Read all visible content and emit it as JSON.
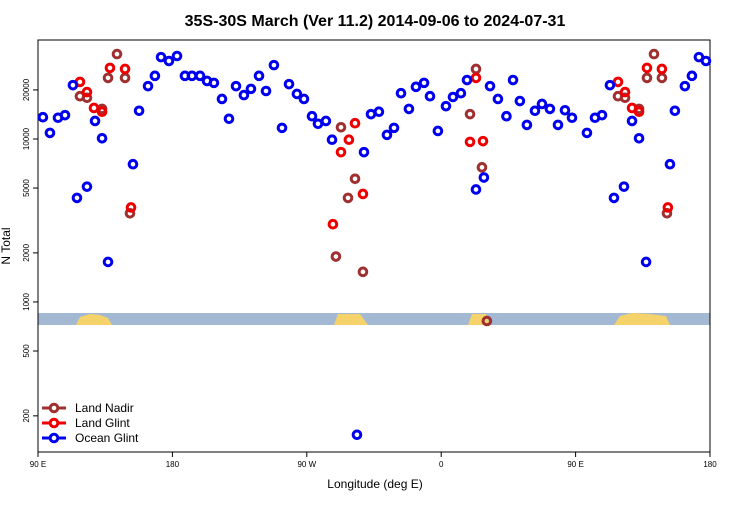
{
  "chart_data": {
    "type": "scatter",
    "title": "35S-30S March (Ver 11.2)   2014-09-06 to 2024-07-31",
    "xlabel": "Longitude (deg E)",
    "ylabel": "N Total",
    "xlim": [
      90,
      540
    ],
    "xticks": [
      {
        "value": 90,
        "label": "90 E"
      },
      {
        "value": 180,
        "label": "180"
      },
      {
        "value": 270,
        "label": "90 W"
      },
      {
        "value": 360,
        "label": "0"
      },
      {
        "value": 450,
        "label": "90 E"
      },
      {
        "value": 540,
        "label": "180"
      }
    ],
    "ylim": [
      120,
      40500
    ],
    "log_y": true,
    "yticks": [
      200,
      500,
      1000,
      2000,
      5000,
      10000,
      20000
    ],
    "legend_position": "lower-left",
    "series": [
      {
        "name": "Land Nadir",
        "color": "#a03030",
        "x": [
          118.1,
          122.8,
          132.9,
          136.9,
          142.9,
          148.3,
          151.6,
          289.5,
          292.9,
          297.6,
          302.3,
          307.6,
          379.3,
          383.3,
          387.3,
          390.6,
          478.4,
          483.1,
          492.5,
          497.8,
          502.5,
          507.8,
          511.2
        ],
        "values": [
          18300,
          17900,
          15300,
          23700,
          33200,
          23700,
          3500,
          1900,
          11800,
          4350,
          5700,
          1530,
          14200,
          26900,
          6700,
          764,
          18300,
          17900,
          15300,
          23700,
          33200,
          23700,
          3500
        ]
      },
      {
        "name": "Land Glint",
        "color": "#ee0000",
        "x": [
          118.1,
          122.8,
          127.5,
          132.9,
          138.2,
          148.3,
          152.3,
          287.5,
          292.9,
          298.2,
          302.3,
          307.6,
          379.3,
          383.3,
          388.0,
          478.4,
          483.1,
          487.8,
          492.5,
          497.8,
          507.8,
          511.8
        ],
        "values": [
          22400,
          19400,
          15500,
          14700,
          27300,
          26900,
          3800,
          3000,
          8300,
          9900,
          12500,
          4600,
          9600,
          23700,
          9700,
          22400,
          19400,
          15500,
          14700,
          27300,
          26900,
          3800
        ]
      },
      {
        "name": "Ocean Glint",
        "color": "#0000ee",
        "x": [
          93.3,
          98.0,
          103.4,
          108.1,
          113.4,
          116.1,
          122.8,
          128.2,
          132.9,
          136.9,
          153.6,
          157.7,
          163.7,
          168.3,
          172.4,
          177.7,
          183.1,
          188.4,
          193.1,
          198.5,
          203.2,
          207.8,
          213.2,
          217.9,
          222.6,
          227.9,
          232.6,
          238.0,
          242.7,
          248.0,
          253.4,
          258.1,
          263.4,
          268.1,
          273.5,
          277.5,
          282.8,
          286.9,
          303.6,
          308.3,
          313.0,
          318.3,
          323.7,
          328.4,
          333.1,
          338.4,
          343.1,
          348.5,
          352.5,
          357.8,
          363.2,
          367.9,
          373.2,
          377.3,
          383.3,
          388.6,
          392.7,
          398.0,
          403.7,
          408.1,
          412.7,
          417.4,
          422.8,
          427.5,
          432.8,
          438.2,
          442.9,
          447.6,
          457.6,
          463.0,
          467.7,
          473.0,
          475.7,
          482.4,
          487.8,
          492.5,
          497.2,
          513.2,
          516.5,
          523.2,
          527.9,
          532.6,
          537.3
        ],
        "values": [
          13600,
          10900,
          13500,
          14000,
          21400,
          4350,
          5100,
          12900,
          10100,
          1760,
          7000,
          14900,
          21100,
          24400,
          31800,
          30100,
          32300,
          24400,
          24400,
          24400,
          22700,
          22100,
          17600,
          13300,
          21100,
          18600,
          20300,
          24400,
          19700,
          28400,
          11700,
          21700,
          18900,
          17600,
          13800,
          12400,
          12900,
          9900,
          153,
          8300,
          14200,
          14700,
          10600,
          11700,
          19100,
          15300,
          20900,
          22100,
          18300,
          11200,
          15900,
          18100,
          19100,
          23000,
          4900,
          5800,
          21100,
          17600,
          13800,
          23000,
          17100,
          12200,
          14900,
          16400,
          15300,
          12200,
          15000,
          13500,
          10900,
          13500,
          14000,
          21400,
          4350,
          5100,
          12900,
          10100,
          1760,
          7000,
          14900,
          21100,
          24400,
          31800,
          30100
        ]
      }
    ]
  }
}
